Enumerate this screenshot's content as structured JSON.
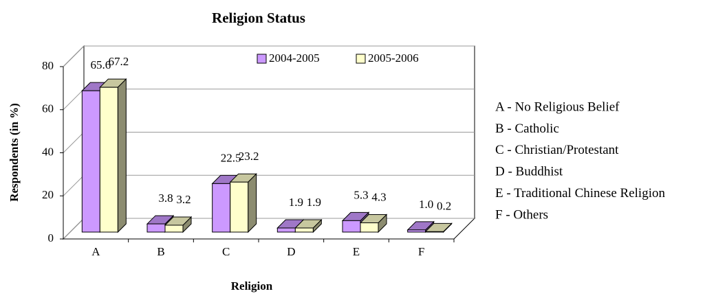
{
  "chart_data": {
    "type": "bar3d",
    "title": "Religion Status",
    "x_label": "Religion",
    "y_label": "Respondents (in %)",
    "categories": [
      "A",
      "B",
      "C",
      "D",
      "E",
      "F"
    ],
    "series": [
      {
        "name": "2004-2005",
        "color": "#cc99ff",
        "values": [
          65.6,
          3.8,
          22.5,
          1.9,
          5.3,
          1.0
        ],
        "value_labels": [
          "65.6",
          "3.8",
          "22.5",
          "1.9",
          "5.3",
          "1.0"
        ]
      },
      {
        "name": "2005-2006",
        "color": "#ffffcc",
        "values": [
          67.2,
          3.2,
          23.2,
          1.9,
          4.3,
          0.2
        ],
        "value_labels": [
          "67.2",
          "3.2",
          "23.2",
          "1.9",
          "4.3",
          "0.2"
        ]
      }
    ],
    "ylim": [
      0,
      80
    ],
    "yticks": [
      0,
      20,
      40,
      60,
      80
    ],
    "grid": true,
    "annotations": [
      "A - No Religious Belief",
      "B - Catholic",
      "C - Christian/Protestant",
      "D - Buddhist",
      "E - Traditional Chinese Religion",
      "F - Others"
    ]
  }
}
